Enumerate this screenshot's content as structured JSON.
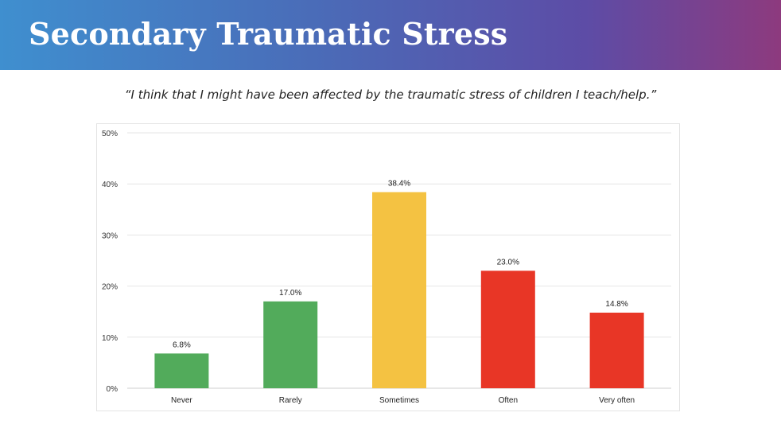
{
  "slide": {
    "title": "Secondary Traumatic Stress",
    "quote": "“I think that I might have been affected by the traumatic stress of children I teach/help.”"
  },
  "chart_data": {
    "type": "bar",
    "categories": [
      "Never",
      "Rarely",
      "Sometimes",
      "Often",
      "Very often"
    ],
    "values": [
      6.8,
      17.0,
      38.4,
      23.0,
      14.8
    ],
    "data_labels": [
      "6.8%",
      "17.0%",
      "38.4%",
      "23.0%",
      "14.8%"
    ],
    "colors": [
      "#52ab5b",
      "#52ab5b",
      "#f4c242",
      "#e83626",
      "#e83626"
    ],
    "ylim": [
      0,
      50
    ],
    "yticks": [
      0,
      10,
      20,
      30,
      40,
      50
    ],
    "ytick_labels": [
      "0%",
      "10%",
      "20%",
      "30%",
      "40%",
      "50%"
    ],
    "grid": true,
    "title": "",
    "xlabel": "",
    "ylabel": ""
  }
}
